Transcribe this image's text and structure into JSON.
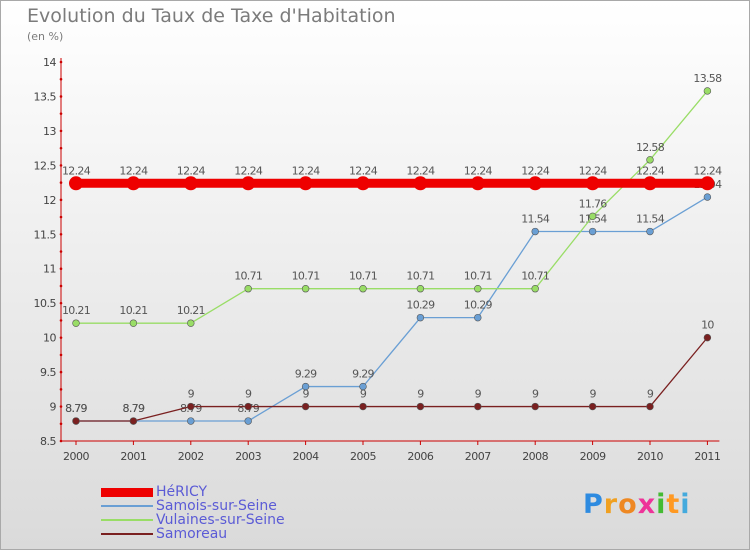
{
  "header": {
    "title": "Evolution du Taux de Taxe d'Habitation",
    "unit": "(en %)"
  },
  "brand": {
    "letters": [
      "P",
      "r",
      "o",
      "x",
      "i",
      "t",
      "i"
    ],
    "colors": [
      "#2e8be0",
      "#f0a020",
      "#ee8822",
      "#ee3399",
      "#44bb33",
      "#ff9922",
      "#44aadd"
    ]
  },
  "chart_data": {
    "type": "line",
    "x": [
      "2000",
      "2001",
      "2002",
      "2003",
      "2004",
      "2005",
      "2006",
      "2007",
      "2008",
      "2009",
      "2010",
      "2011"
    ],
    "ylim": [
      8.5,
      14
    ],
    "yticks": [
      "8.5",
      "9",
      "9.5",
      "10",
      "10.5",
      "11",
      "11.5",
      "12",
      "12.5",
      "13",
      "13.5",
      "14"
    ],
    "grid": false,
    "legend": "bottom-left",
    "series": [
      {
        "name": "HéRICY",
        "color": "#ee0000",
        "values": [
          12.24,
          12.24,
          12.24,
          12.24,
          12.24,
          12.24,
          12.24,
          12.24,
          12.24,
          12.24,
          12.24,
          12.24
        ],
        "labels": [
          "12.24",
          "12.24",
          "12.24",
          "12.24",
          "12.24",
          "12.24",
          "12.24",
          "12.24",
          "12.24",
          "12.24",
          "12.24",
          "12.24"
        ]
      },
      {
        "name": "Samois-sur-Seine",
        "color": "#6a9fd4",
        "values": [
          8.79,
          8.79,
          8.79,
          8.79,
          9.29,
          9.29,
          10.29,
          10.29,
          11.54,
          11.54,
          11.54,
          12.04
        ],
        "labels": [
          "8.79",
          "8.79",
          "8.79",
          "8.79",
          "9.29",
          "9.29",
          "10.29",
          "10.29",
          "11.54",
          "11.54",
          "11.54",
          "12.04"
        ]
      },
      {
        "name": "Vulaines-sur-Seine",
        "color": "#99dd66",
        "values": [
          10.21,
          10.21,
          10.21,
          10.71,
          10.71,
          10.71,
          10.71,
          10.71,
          10.71,
          11.76,
          12.58,
          13.58
        ],
        "labels": [
          "10.21",
          "10.21",
          "10.21",
          "10.71",
          "10.71",
          "10.71",
          "10.71",
          "10.71",
          "10.71",
          "11.76",
          "12.58",
          "13.58"
        ]
      },
      {
        "name": "Samoreau",
        "color": "#7a2020",
        "values": [
          8.79,
          8.79,
          9,
          9,
          9,
          9,
          9,
          9,
          9,
          9,
          9,
          10
        ],
        "labels": [
          "8.79",
          "8.79",
          "9",
          "9",
          "9",
          "9",
          "9",
          "9",
          "9",
          "9",
          "9",
          "10"
        ]
      }
    ]
  }
}
